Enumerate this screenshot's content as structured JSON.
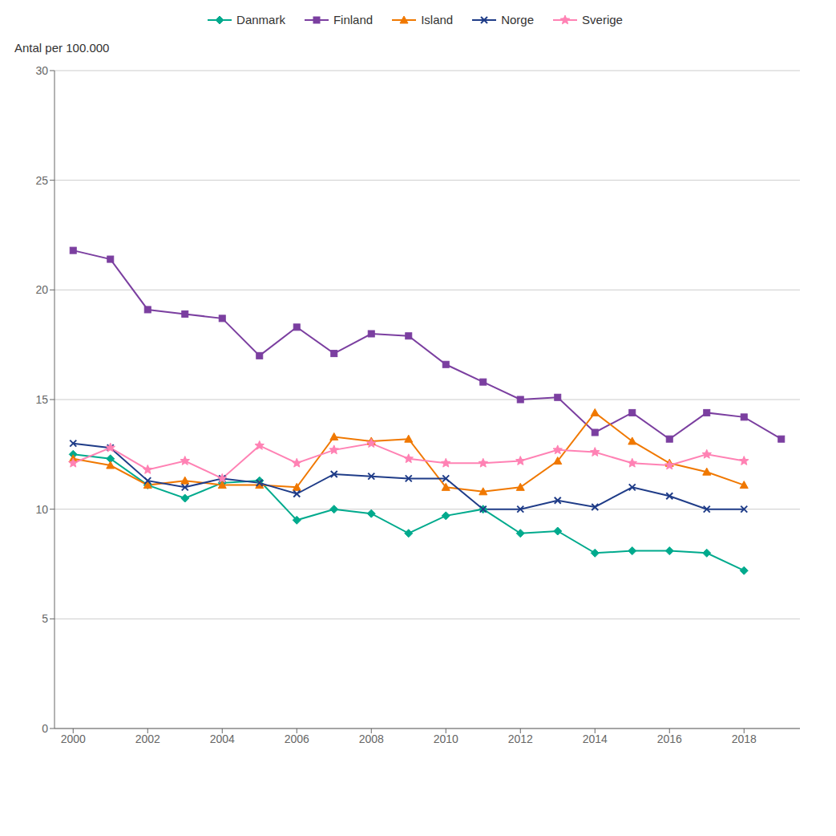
{
  "chart_data": {
    "type": "line",
    "ylabel": "Antal per 100.000",
    "x": [
      2000,
      2001,
      2002,
      2003,
      2004,
      2005,
      2006,
      2007,
      2008,
      2009,
      2010,
      2011,
      2012,
      2013,
      2014,
      2015,
      2016,
      2017,
      2018,
      2019
    ],
    "series": [
      {
        "name": "Danmark",
        "color": "#00AA8D",
        "marker": "diamond",
        "values": [
          12.5,
          12.3,
          11.1,
          10.5,
          11.2,
          11.3,
          9.5,
          10.0,
          9.8,
          8.9,
          9.7,
          10.0,
          8.9,
          9.0,
          8.0,
          8.1,
          8.1,
          8.0,
          7.2,
          null
        ]
      },
      {
        "name": "Finland",
        "color": "#7B3FA0",
        "marker": "square",
        "values": [
          21.8,
          21.4,
          19.1,
          18.9,
          18.7,
          17.0,
          18.3,
          17.1,
          18.0,
          17.9,
          16.6,
          15.8,
          15.0,
          15.1,
          13.5,
          14.4,
          13.2,
          14.4,
          14.2,
          13.2
        ]
      },
      {
        "name": "Island",
        "color": "#F07800",
        "marker": "triangle",
        "values": [
          12.3,
          12.0,
          11.1,
          11.3,
          11.1,
          11.1,
          11.0,
          13.3,
          13.1,
          13.2,
          11.0,
          10.8,
          11.0,
          12.2,
          14.4,
          13.1,
          12.1,
          11.7,
          11.1,
          null
        ]
      },
      {
        "name": "Norge",
        "color": "#1F3C88",
        "marker": "x",
        "values": [
          13.0,
          12.8,
          11.3,
          11.0,
          11.4,
          11.2,
          10.7,
          11.6,
          11.5,
          11.4,
          11.4,
          10.0,
          10.0,
          10.4,
          10.1,
          11.0,
          10.6,
          10.0,
          10.0,
          null
        ]
      },
      {
        "name": "Sverige",
        "color": "#FF82B4",
        "marker": "star",
        "values": [
          12.1,
          12.8,
          11.8,
          12.2,
          11.4,
          12.9,
          12.1,
          12.7,
          13.0,
          12.3,
          12.1,
          12.1,
          12.2,
          12.7,
          12.6,
          12.1,
          12.0,
          12.5,
          12.2,
          null
        ]
      }
    ],
    "xlim": [
      1999.5,
      2019.5
    ],
    "xticks": [
      2000,
      2002,
      2004,
      2006,
      2008,
      2010,
      2012,
      2014,
      2016,
      2018
    ],
    "ylim": [
      0,
      30
    ],
    "yticks": [
      0,
      5,
      10,
      15,
      20,
      25,
      30
    ],
    "grid": true,
    "legend": "top"
  }
}
